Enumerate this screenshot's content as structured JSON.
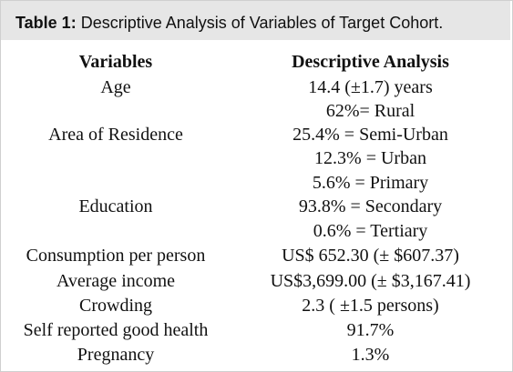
{
  "caption": {
    "label": "Table 1:",
    "text": "Descriptive Analysis of Variables of Target Cohort."
  },
  "table": {
    "headers": {
      "variables": "Variables",
      "analysis": "Descriptive Analysis"
    },
    "rows": [
      {
        "variable": "Age",
        "values": [
          "14.4 (±1.7) years"
        ]
      },
      {
        "variable": "Area of Residence",
        "values": [
          "62%= Rural",
          "25.4% = Semi-Urban",
          "12.3% = Urban"
        ]
      },
      {
        "variable": "Education",
        "values": [
          "5.6% = Primary",
          "93.8% = Secondary",
          "0.6% = Tertiary"
        ]
      },
      {
        "variable": "Consumption per person",
        "values": [
          "US$ 652.30 (± $607.37)"
        ]
      },
      {
        "variable": "Average income",
        "values": [
          "US$3,699.00 (± $3,167.41)"
        ]
      },
      {
        "variable": "Crowding",
        "values": [
          "2.3 ( ±1.5 persons)"
        ]
      },
      {
        "variable": "Self reported good health",
        "values": [
          "91.7%"
        ]
      },
      {
        "variable": "Pregnancy",
        "values": [
          "1.3%"
        ]
      }
    ]
  }
}
